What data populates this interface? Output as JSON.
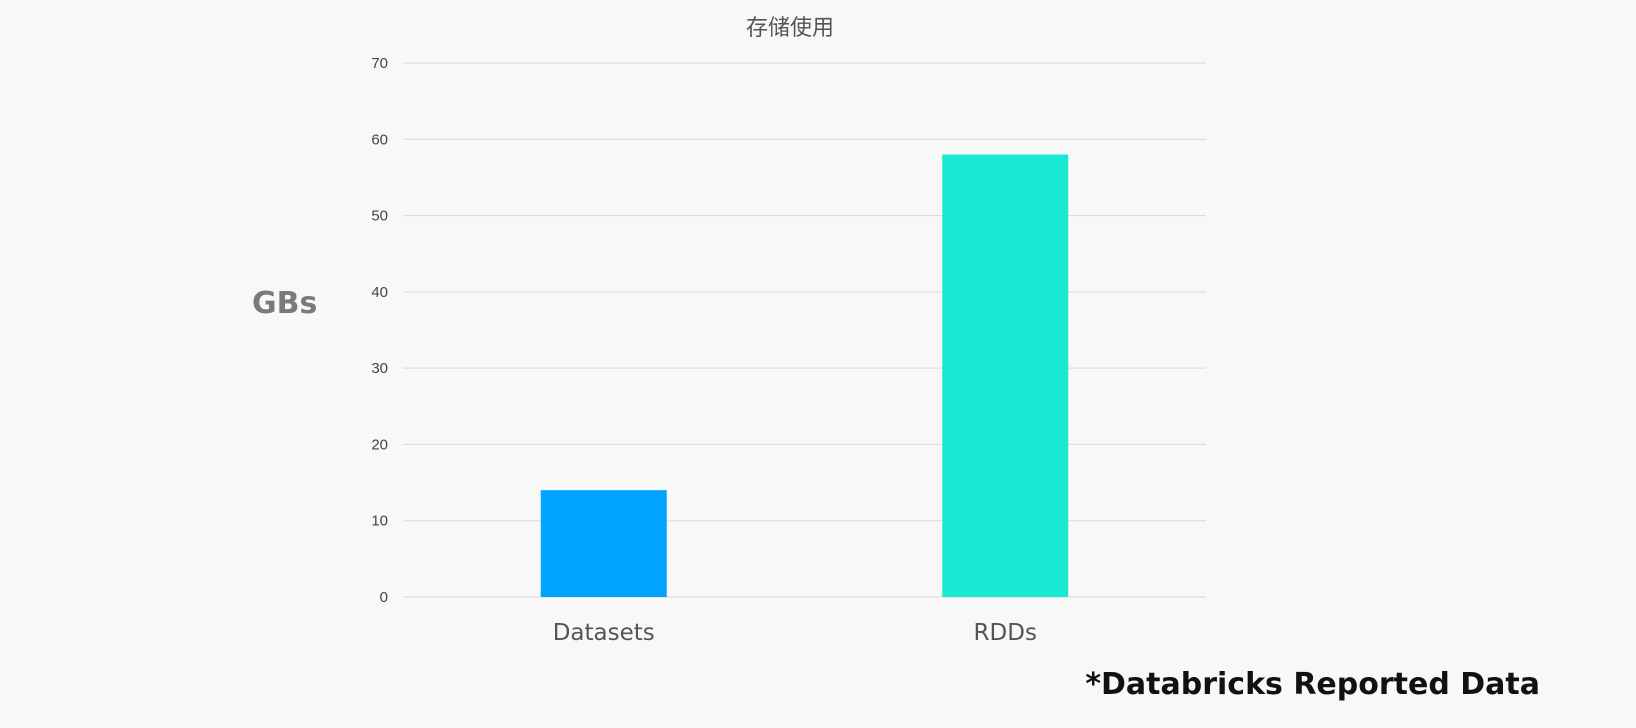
{
  "chart": {
    "title": "存储使用",
    "ylabel": "GBs",
    "footnote": "*Databricks Reported Data"
  },
  "colors": {
    "background": "#f8f8f8",
    "grid": "#d9d9d9",
    "tick_text": "#444444",
    "category_text": "#555555"
  },
  "chart_data": {
    "type": "bar",
    "title": "存储使用",
    "xlabel": "",
    "ylabel": "GBs",
    "categories": [
      "Datasets",
      "RDDs"
    ],
    "values": [
      14,
      58
    ],
    "bar_colors": [
      "#00a3ff",
      "#19e8d2"
    ],
    "ylim": [
      0,
      70
    ],
    "yticks": [
      0,
      10,
      20,
      30,
      40,
      50,
      60,
      70
    ],
    "grid": true,
    "legend": "none"
  }
}
